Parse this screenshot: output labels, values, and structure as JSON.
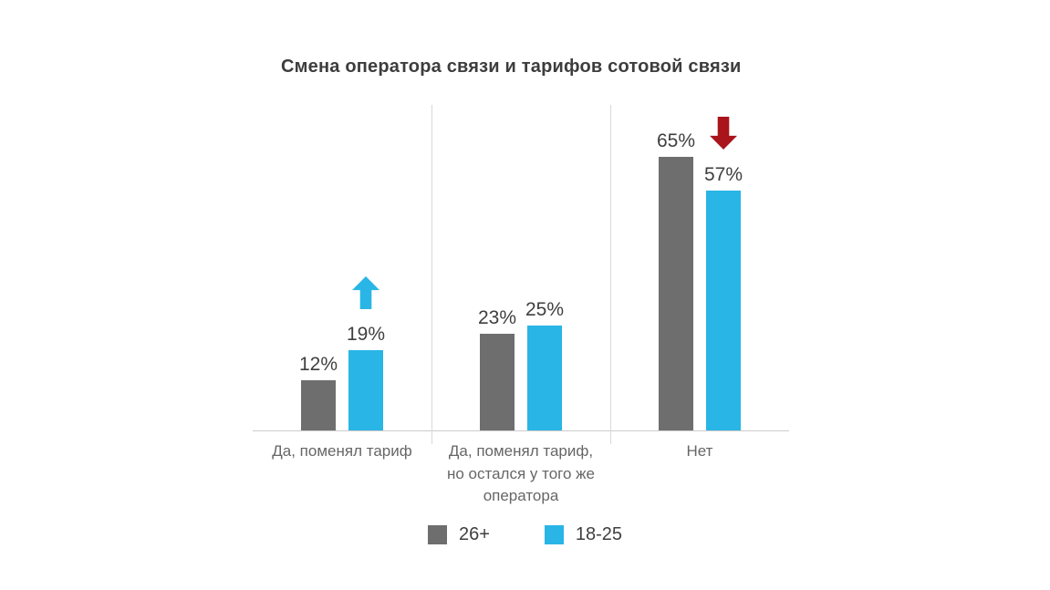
{
  "chart_data": {
    "type": "bar",
    "title": "Смена оператора связи и тарифов сотовой связи",
    "categories": [
      "Да, поменял тариф",
      "Да, поменял тариф,\nно остался у того же\nоператора",
      "Нет"
    ],
    "series": [
      {
        "name": "26+",
        "color": "#6e6e6e",
        "values": [
          12,
          23,
          65
        ]
      },
      {
        "name": "18-25",
        "color": "#29b5e5",
        "values": [
          19,
          25,
          57
        ]
      }
    ],
    "value_suffix": "%",
    "ylim": [
      0,
      65
    ],
    "grid": false,
    "legend_position": "bottom",
    "legend": [
      {
        "label": "26+",
        "color": "#6e6e6e"
      },
      {
        "label": "18-25",
        "color": "#29b5e5"
      }
    ],
    "annotations": [
      {
        "group": 0,
        "series": 1,
        "direction": "up",
        "color": "#29b5e5"
      },
      {
        "group": 2,
        "series": 1,
        "direction": "down",
        "color": "#a9151b"
      }
    ]
  }
}
